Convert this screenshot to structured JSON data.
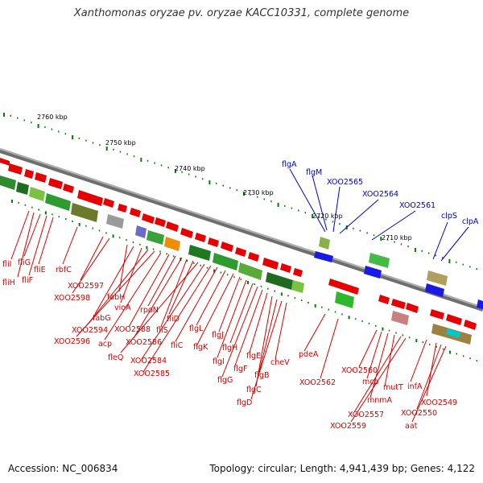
{
  "title": "Xanthomonas oryzae pv. oryzae KACC10331, complete genome",
  "footer": {
    "accession": "Accession: NC_006834",
    "topology": "Topology: circular; Length: 4,941,439 bp; Genes: 4,122"
  },
  "colors": {
    "backbone": "#8a8a8a",
    "forward_genes": "#1a1ae6",
    "reverse_genes": "#e60000",
    "tick_marks": "#0a7a0a",
    "label_red": "#d40000",
    "label_blue": "#0000cc"
  },
  "scale": {
    "unit": "kbp",
    "labels": [
      "2760 kbp",
      "2750 kbp",
      "2740 kbp",
      "2730 kbp",
      "2720 kbp",
      "2710 kbp"
    ]
  },
  "labels_red": [
    "fliI",
    "fliH",
    "fliG",
    "fliF",
    "fliE",
    "rbfC",
    "XOO2597",
    "XOO2598",
    "fabH",
    "fabG",
    "vioA",
    "XOO2594",
    "XOO2596",
    "acp",
    "XOO2588",
    "rpoN",
    "XOO2586",
    "fliS",
    "fliD",
    "fleQ",
    "XOO2584",
    "XOO2585",
    "fliC",
    "flgL",
    "flgK",
    "flgJ",
    "flgI",
    "flgH",
    "flgG",
    "flgF",
    "flgE",
    "flgC",
    "flgB",
    "flgD",
    "cheV",
    "pdeA",
    "XOO2562",
    "XOO2560",
    "mcp",
    "mnmA",
    "mutT",
    "XOO2557",
    "XOO2559",
    "infA",
    "XOO2549",
    "XOO2550",
    "aat"
  ],
  "labels_blue": [
    "flgA",
    "flgM",
    "XOO2565",
    "XOO2564",
    "XOO2561",
    "clpS",
    "clpA"
  ]
}
